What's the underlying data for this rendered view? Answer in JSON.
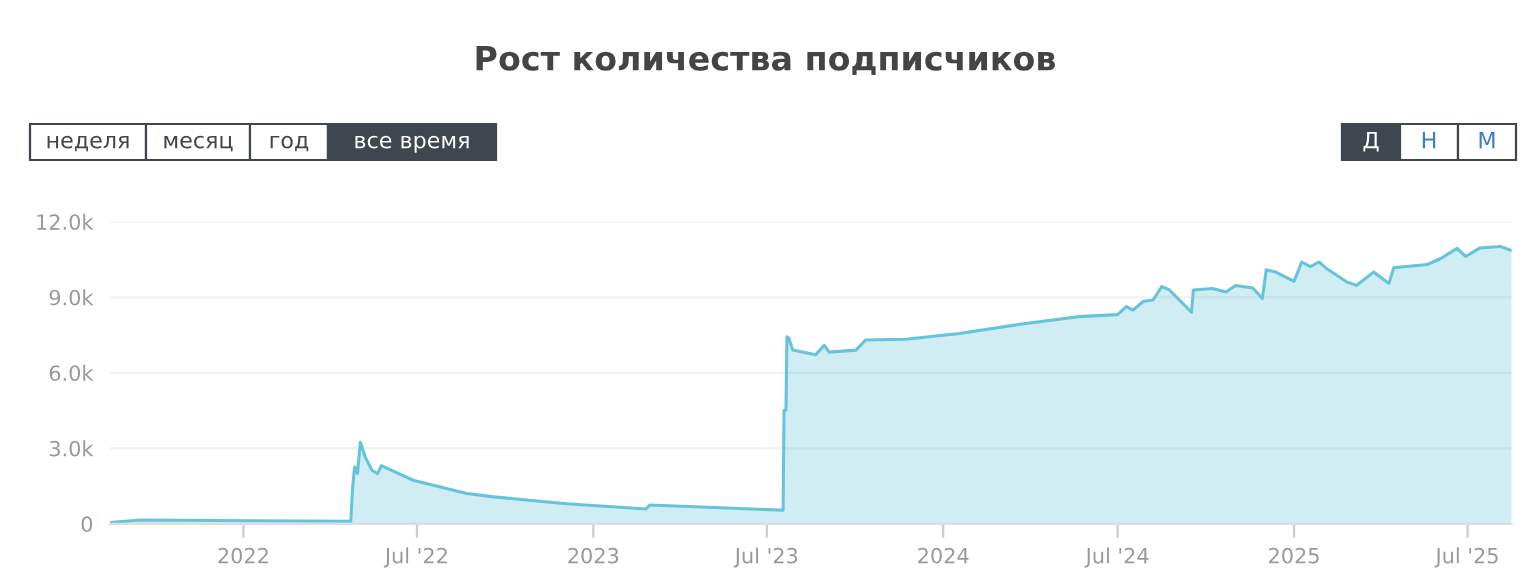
{
  "chart_data": {
    "type": "area",
    "title": "Рост количества подписчиков",
    "annotations": [
      "неделя",
      "месяц",
      "год",
      "все время",
      "Д",
      "Н",
      "М"
    ],
    "x": [
      "2021-08-15",
      "2021-09-15",
      "2022-04-23",
      "2022-04-25",
      "2022-04-27",
      "2022-04-30",
      "2022-05-03",
      "2022-05-08",
      "2022-05-15",
      "2022-05-21",
      "2022-05-25",
      "2022-06-27",
      "2022-08-22",
      "2022-09-19",
      "2022-12-04",
      "2023-02-25",
      "2023-03-01",
      "2023-07-18",
      "2023-07-19",
      "2023-07-21",
      "2023-07-22",
      "2023-07-24",
      "2023-07-28",
      "2023-08-21",
      "2023-08-30",
      "2023-09-04",
      "2023-10-02",
      "2023-10-12",
      "2023-11-23",
      "2024-01-18",
      "2024-03-27",
      "2024-05-22",
      "2024-07-01",
      "2024-07-10",
      "2024-07-17",
      "2024-07-28",
      "2024-08-07",
      "2024-08-16",
      "2024-08-24",
      "2024-09-16",
      "2024-09-18",
      "2024-10-08",
      "2024-10-22",
      "2024-11-01",
      "2024-11-19",
      "2024-11-29",
      "2024-12-03",
      "2024-12-13",
      "2025-01-01",
      "2025-01-09",
      "2025-01-18",
      "2025-01-27",
      "2025-02-04",
      "2025-02-25",
      "2025-03-07",
      "2025-03-25",
      "2025-04-10",
      "2025-04-15",
      "2025-05-20",
      "2025-06-03",
      "2025-06-20",
      "2025-06-29",
      "2025-07-14",
      "2025-08-04",
      "2025-08-16"
    ],
    "series": [
      {
        "color": "#67c3dc",
        "values": [
          50,
          150,
          100,
          1470,
          2260,
          2000,
          3240,
          2660,
          2130,
          1990,
          2310,
          1730,
          1200,
          1070,
          800,
          590,
          750,
          540,
          4510,
          4510,
          7430,
          7380,
          6900,
          6720,
          7090,
          6820,
          6900,
          7300,
          7330,
          7560,
          7960,
          8230,
          8310,
          8630,
          8490,
          8840,
          8890,
          9420,
          9290,
          8410,
          9290,
          9350,
          9210,
          9470,
          9370,
          8950,
          10090,
          10000,
          9630,
          10400,
          10220,
          10400,
          10140,
          9610,
          9470,
          10000,
          9550,
          10170,
          10300,
          10540,
          10940,
          10620,
          10960,
          11020,
          10860
        ]
      }
    ],
    "xlim": [
      "2021-08-15",
      "2025-08-16"
    ],
    "xticks": [
      {
        "value": "2022-01-01",
        "label": "2022"
      },
      {
        "value": "2022-07-01",
        "label": "Jul '22"
      },
      {
        "value": "2023-01-01",
        "label": "2023"
      },
      {
        "value": "2023-07-01",
        "label": "Jul '23"
      },
      {
        "value": "2024-01-01",
        "label": "2024"
      },
      {
        "value": "2024-07-01",
        "label": "Jul '24"
      },
      {
        "value": "2025-01-01",
        "label": "2025"
      },
      {
        "value": "2025-07-01",
        "label": "Jul '25"
      }
    ],
    "ylim": [
      0,
      12000
    ],
    "yticks": [
      0,
      {
        "value": 3000,
        "label": "3.0k"
      },
      {
        "value": 6000,
        "label": "6.0k"
      },
      {
        "value": 9000,
        "label": "9.0k"
      },
      {
        "value": 12000,
        "label": "12.0k"
      }
    ],
    "grid": "y",
    "legend": false
  }
}
